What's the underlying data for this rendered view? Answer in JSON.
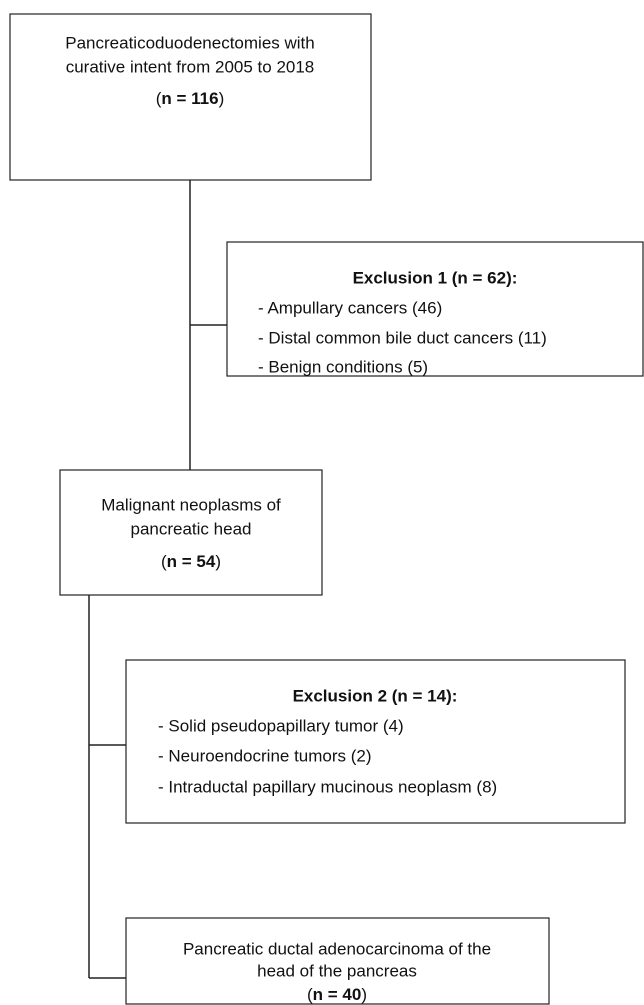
{
  "nodes": [
    {
      "lines": [
        "Pancreaticoduodenectomies with",
        "curative intent from 2005 to 2018"
      ],
      "count": {
        "open": "(",
        "n": "n = 116",
        "close": ")"
      }
    },
    {
      "title": "Exclusion 1 (n = 62):",
      "items": [
        "- Ampullary cancers (46)",
        "- Distal common bile duct cancers (11)",
        "- Benign conditions (5)"
      ]
    },
    {
      "lines": [
        "Malignant neoplasms of",
        "pancreatic head"
      ],
      "count": {
        "open": "(",
        "n": "n = 54",
        "close": ")"
      }
    },
    {
      "title": "Exclusion 2 (n = 14):",
      "items": [
        "- Solid pseudopapillary tumor (4)",
        "- Neuroendocrine tumors (2)",
        "- Intraductal papillary mucinous neoplasm (8)"
      ]
    },
    {
      "lines": [
        "Pancreatic ductal adenocarcinoma of the",
        "head of the pancreas"
      ],
      "count": {
        "open": "(",
        "n": "n = 40",
        "close": ")"
      }
    }
  ]
}
